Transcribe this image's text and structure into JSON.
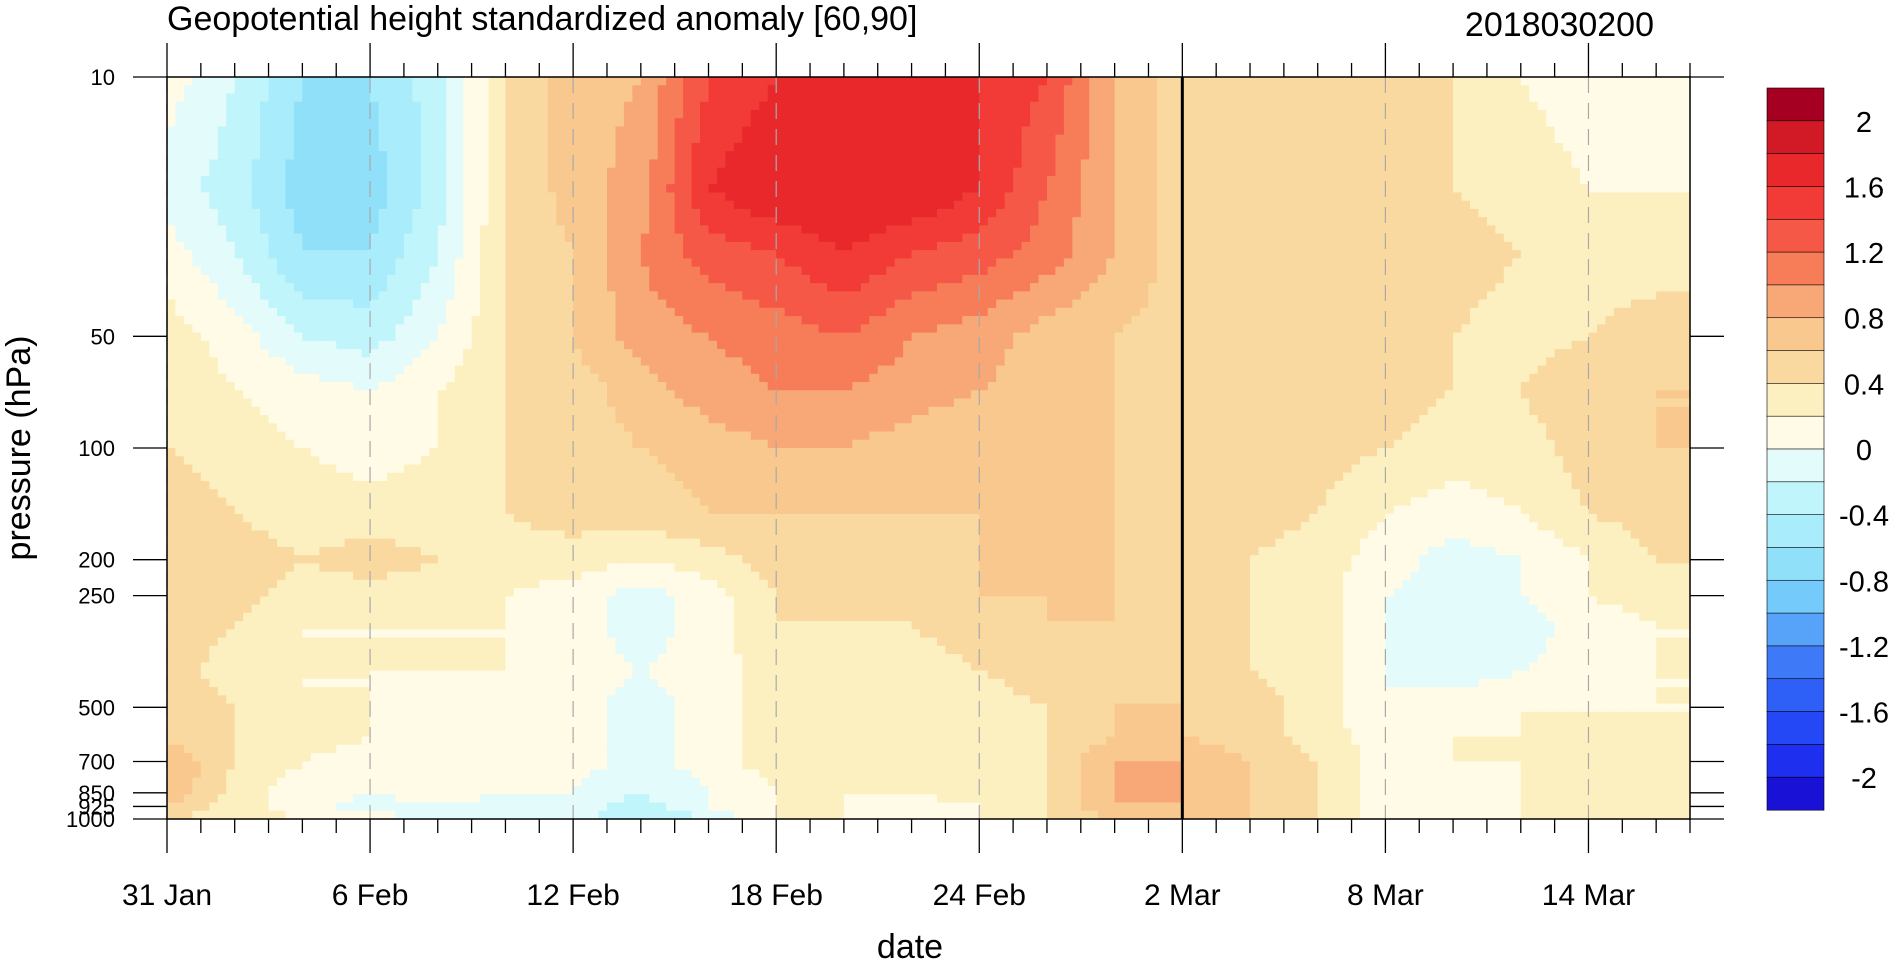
{
  "chart_data": {
    "type": "heatmap",
    "title": "Geopotential height standardized anomaly [60,90]",
    "date_stamp": "2018030200",
    "xlabel": "date",
    "ylabel": "pressure (hPa)",
    "x_start_date": "31 Jan",
    "x_end_date": "17 Mar",
    "xlim_days": [
      0,
      45
    ],
    "x_ticks": [
      {
        "day": 0,
        "label": "31 Jan"
      },
      {
        "day": 6,
        "label": "6 Feb"
      },
      {
        "day": 12,
        "label": "12 Feb"
      },
      {
        "day": 18,
        "label": "18 Feb"
      },
      {
        "day": 24,
        "label": "24 Feb"
      },
      {
        "day": 30,
        "label": "2 Mar"
      },
      {
        "day": 36,
        "label": "8 Mar"
      },
      {
        "day": 42,
        "label": "14 Mar"
      }
    ],
    "y_scale": "log",
    "ylim": [
      1000,
      10
    ],
    "y_ticks": [
      10,
      50,
      100,
      200,
      250,
      500,
      700,
      850,
      925,
      1000
    ],
    "y_tick_labels": [
      "10",
      "50",
      "100",
      "200",
      "250",
      "500",
      "700",
      "850",
      "925",
      "1000"
    ],
    "analysis_marker_day": 30,
    "colorbar": {
      "levels": [
        -2.2,
        -2,
        -1.8,
        -1.6,
        -1.4,
        -1.2,
        -1,
        -0.8,
        -0.6,
        -0.4,
        -0.2,
        0,
        0.2,
        0.4,
        0.6,
        0.8,
        1,
        1.2,
        1.4,
        1.6,
        1.8,
        2,
        2.2
      ],
      "colors": [
        "#1a11d6",
        "#1e2ff0",
        "#2448f5",
        "#2e5ff7",
        "#3e7af7",
        "#58a3fa",
        "#74cbfb",
        "#90e0fa",
        "#a9ecfb",
        "#bff5fb",
        "#e3fbfb",
        "#fffbe6",
        "#fdf0c0",
        "#fad9a1",
        "#f9c88f",
        "#f8a876",
        "#f77c58",
        "#f55846",
        "#f23a36",
        "#e8282b",
        "#d21a26",
        "#a50021"
      ],
      "tick_labels": [
        "2",
        "1.6",
        "1.2",
        "0.8",
        "0.4",
        "0",
        "-0.4",
        "-0.8",
        "-1.2",
        "-1.6",
        "-2"
      ]
    },
    "grid": {
      "x_days": [
        0,
        2,
        4,
        6,
        8,
        10,
        12,
        14,
        16,
        18,
        20,
        22,
        24,
        26,
        28,
        30,
        32,
        34,
        36,
        38,
        40,
        42,
        44
      ],
      "p_levels": [
        10,
        20,
        30,
        50,
        70,
        100,
        150,
        200,
        250,
        300,
        400,
        500,
        600,
        700,
        850,
        925,
        1000
      ],
      "values": [
        [
          0.1,
          -0.2,
          -0.6,
          -0.6,
          -0.3,
          0.4,
          0.7,
          0.8,
          1.4,
          1.6,
          1.6,
          1.8,
          1.6,
          1.4,
          0.8,
          0.5,
          0.5,
          0.5,
          0.5,
          0.4,
          0.2,
          0.1,
          0.1
        ],
        [
          -0.1,
          -0.3,
          -0.7,
          -0.7,
          -0.3,
          0.4,
          0.7,
          0.9,
          1.6,
          1.8,
          1.8,
          1.8,
          1.6,
          1.2,
          0.8,
          0.5,
          0.5,
          0.5,
          0.5,
          0.4,
          0.3,
          0.2,
          0.2
        ],
        [
          0.1,
          -0.2,
          -0.6,
          -0.6,
          -0.2,
          0.4,
          0.6,
          1.0,
          1.3,
          1.4,
          1.6,
          1.4,
          1.3,
          1.1,
          0.8,
          0.5,
          0.5,
          0.5,
          0.5,
          0.5,
          0.4,
          0.3,
          0.3
        ],
        [
          0.3,
          0.1,
          -0.2,
          -0.3,
          0.0,
          0.4,
          0.6,
          0.9,
          1.0,
          1.1,
          1.2,
          1.0,
          0.9,
          0.7,
          0.6,
          0.5,
          0.5,
          0.5,
          0.5,
          0.4,
          0.3,
          0.4,
          0.5
        ],
        [
          0.4,
          0.2,
          0.1,
          0.0,
          0.2,
          0.4,
          0.5,
          0.7,
          0.9,
          1.0,
          1.0,
          0.9,
          0.8,
          0.7,
          0.6,
          0.5,
          0.5,
          0.5,
          0.5,
          0.4,
          0.4,
          0.6,
          0.6
        ],
        [
          0.4,
          0.3,
          0.2,
          0.1,
          0.2,
          0.4,
          0.5,
          0.6,
          0.7,
          0.8,
          0.8,
          0.7,
          0.6,
          0.6,
          0.6,
          0.5,
          0.5,
          0.5,
          0.4,
          0.3,
          0.3,
          0.5,
          0.6
        ],
        [
          0.5,
          0.4,
          0.3,
          0.3,
          0.3,
          0.4,
          0.5,
          0.5,
          0.6,
          0.6,
          0.6,
          0.6,
          0.6,
          0.6,
          0.6,
          0.5,
          0.5,
          0.4,
          0.2,
          0.1,
          0.2,
          0.4,
          0.5
        ],
        [
          0.6,
          0.5,
          0.4,
          0.5,
          0.4,
          0.3,
          0.3,
          0.2,
          0.3,
          0.5,
          0.5,
          0.5,
          0.6,
          0.6,
          0.6,
          0.5,
          0.4,
          0.3,
          0.1,
          -0.1,
          0.0,
          0.2,
          0.4
        ],
        [
          0.6,
          0.5,
          0.3,
          0.3,
          0.3,
          0.2,
          0.1,
          -0.1,
          0.1,
          0.4,
          0.5,
          0.4,
          0.6,
          0.6,
          0.6,
          0.5,
          0.4,
          0.3,
          0.0,
          -0.1,
          0.0,
          0.2,
          0.3
        ],
        [
          0.5,
          0.4,
          0.2,
          0.2,
          0.2,
          0.2,
          0.1,
          -0.1,
          0.1,
          0.4,
          0.4,
          0.4,
          0.5,
          0.6,
          0.6,
          0.5,
          0.4,
          0.3,
          0.0,
          -0.1,
          -0.1,
          0.1,
          0.2
        ],
        [
          0.5,
          0.3,
          0.2,
          0.2,
          0.2,
          0.2,
          0.1,
          0.0,
          0.1,
          0.3,
          0.3,
          0.3,
          0.4,
          0.5,
          0.6,
          0.5,
          0.4,
          0.3,
          0.0,
          -0.1,
          0.0,
          0.1,
          0.2
        ],
        [
          0.5,
          0.4,
          0.2,
          0.2,
          0.1,
          0.1,
          0.1,
          -0.1,
          0.1,
          0.3,
          0.3,
          0.3,
          0.3,
          0.4,
          0.6,
          0.6,
          0.5,
          0.3,
          0.0,
          0.1,
          0.2,
          0.2,
          0.2
        ],
        [
          0.5,
          0.4,
          0.3,
          0.2,
          0.1,
          0.1,
          0.1,
          -0.1,
          0.1,
          0.3,
          0.3,
          0.3,
          0.3,
          0.4,
          0.6,
          0.6,
          0.5,
          0.3,
          0.1,
          0.2,
          0.2,
          0.2,
          0.2
        ],
        [
          0.8,
          0.4,
          0.2,
          0.1,
          0.1,
          0.1,
          0.1,
          -0.1,
          0.1,
          0.3,
          0.3,
          0.3,
          0.3,
          0.4,
          0.8,
          0.8,
          0.6,
          0.4,
          0.1,
          0.2,
          0.2,
          0.3,
          0.3
        ],
        [
          0.8,
          0.3,
          0.1,
          0.0,
          0.1,
          0.0,
          0.0,
          -0.2,
          0.0,
          0.2,
          0.2,
          0.2,
          0.3,
          0.4,
          0.8,
          0.8,
          0.6,
          0.4,
          0.1,
          0.1,
          0.2,
          0.2,
          0.2
        ],
        [
          0.6,
          0.3,
          0.1,
          -0.1,
          0.0,
          -0.1,
          -0.1,
          -0.3,
          0.0,
          0.2,
          0.2,
          0.1,
          0.2,
          0.4,
          0.8,
          0.8,
          0.6,
          0.4,
          0.1,
          0.1,
          0.2,
          0.2,
          0.2
        ],
        [
          0.4,
          0.3,
          0.2,
          0.1,
          -0.1,
          -0.1,
          -0.1,
          -0.4,
          -0.2,
          0.2,
          0.2,
          0.1,
          0.2,
          0.4,
          0.6,
          0.7,
          0.6,
          0.4,
          0.1,
          0.1,
          0.2,
          0.2,
          0.2
        ]
      ]
    }
  }
}
